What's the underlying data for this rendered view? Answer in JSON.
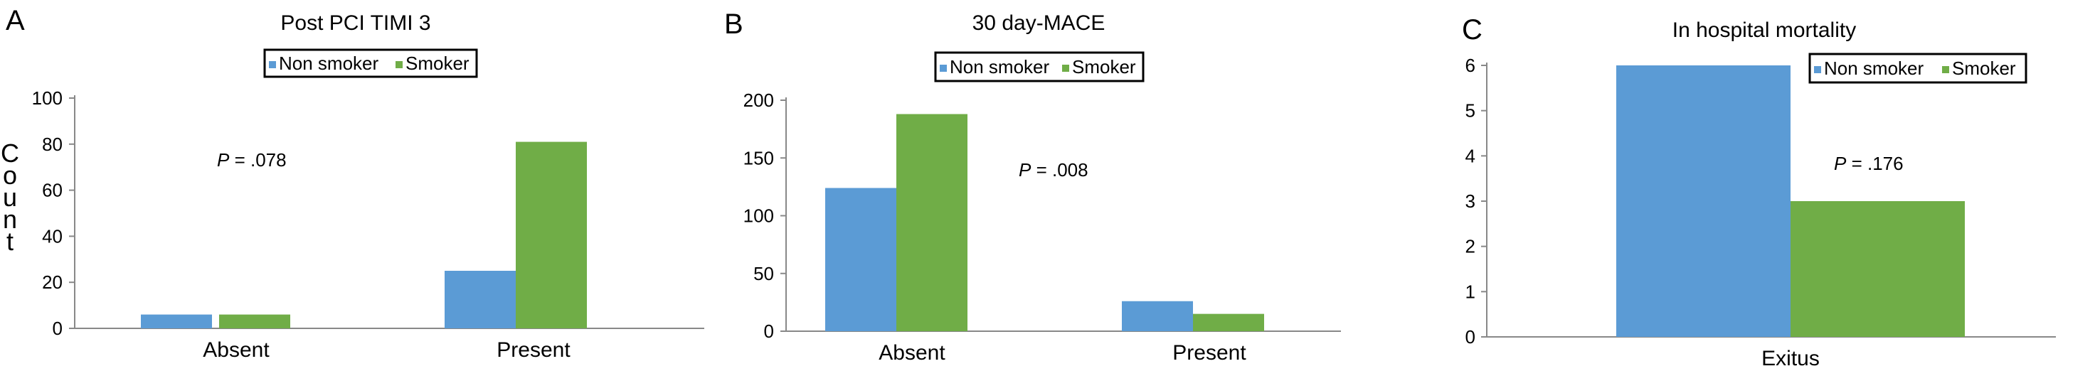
{
  "figure": {
    "ylabel": "Count",
    "colors": {
      "non_smoker": "#5b9bd5",
      "smoker": "#70ad47"
    }
  },
  "chart_data": [
    {
      "panel_letter": "A",
      "type": "bar",
      "title": "Post PCI TIMI 3",
      "categories": [
        "Absent",
        "Present"
      ],
      "series": [
        {
          "name": "Non smoker",
          "values": [
            6,
            25
          ]
        },
        {
          "name": "Smoker",
          "values": [
            6,
            81
          ]
        }
      ],
      "ylim": [
        0,
        100
      ],
      "yticks": [
        "0",
        "20",
        "40",
        "60",
        "80",
        "100"
      ],
      "ylabel": "Count",
      "xlabel": "",
      "legend": "top-center",
      "annotation": {
        "italic": "P",
        "text": " = .078"
      }
    },
    {
      "panel_letter": "B",
      "type": "bar",
      "title": "30 day-MACE",
      "categories": [
        "Absent",
        "Present"
      ],
      "series": [
        {
          "name": "Non smoker",
          "values": [
            124,
            26
          ]
        },
        {
          "name": "Smoker",
          "values": [
            188,
            15
          ]
        }
      ],
      "ylim": [
        0,
        200
      ],
      "yticks": [
        "0",
        "50",
        "100",
        "150",
        "200"
      ],
      "xlabel": "",
      "legend": "top-center",
      "annotation": {
        "italic": "P",
        "text": " = .008"
      }
    },
    {
      "panel_letter": "C",
      "type": "bar",
      "title": "In hospital mortality",
      "categories": [
        "Exitus"
      ],
      "series": [
        {
          "name": "Non smoker",
          "values": [
            6
          ]
        },
        {
          "name": "Smoker",
          "values": [
            3
          ]
        }
      ],
      "ylim": [
        0,
        6
      ],
      "yticks": [
        "0",
        "1",
        "2",
        "3",
        "4",
        "5",
        "6"
      ],
      "xlabel": "",
      "legend": "top-right",
      "annotation": {
        "italic": "P",
        "text": " = .176"
      }
    }
  ]
}
